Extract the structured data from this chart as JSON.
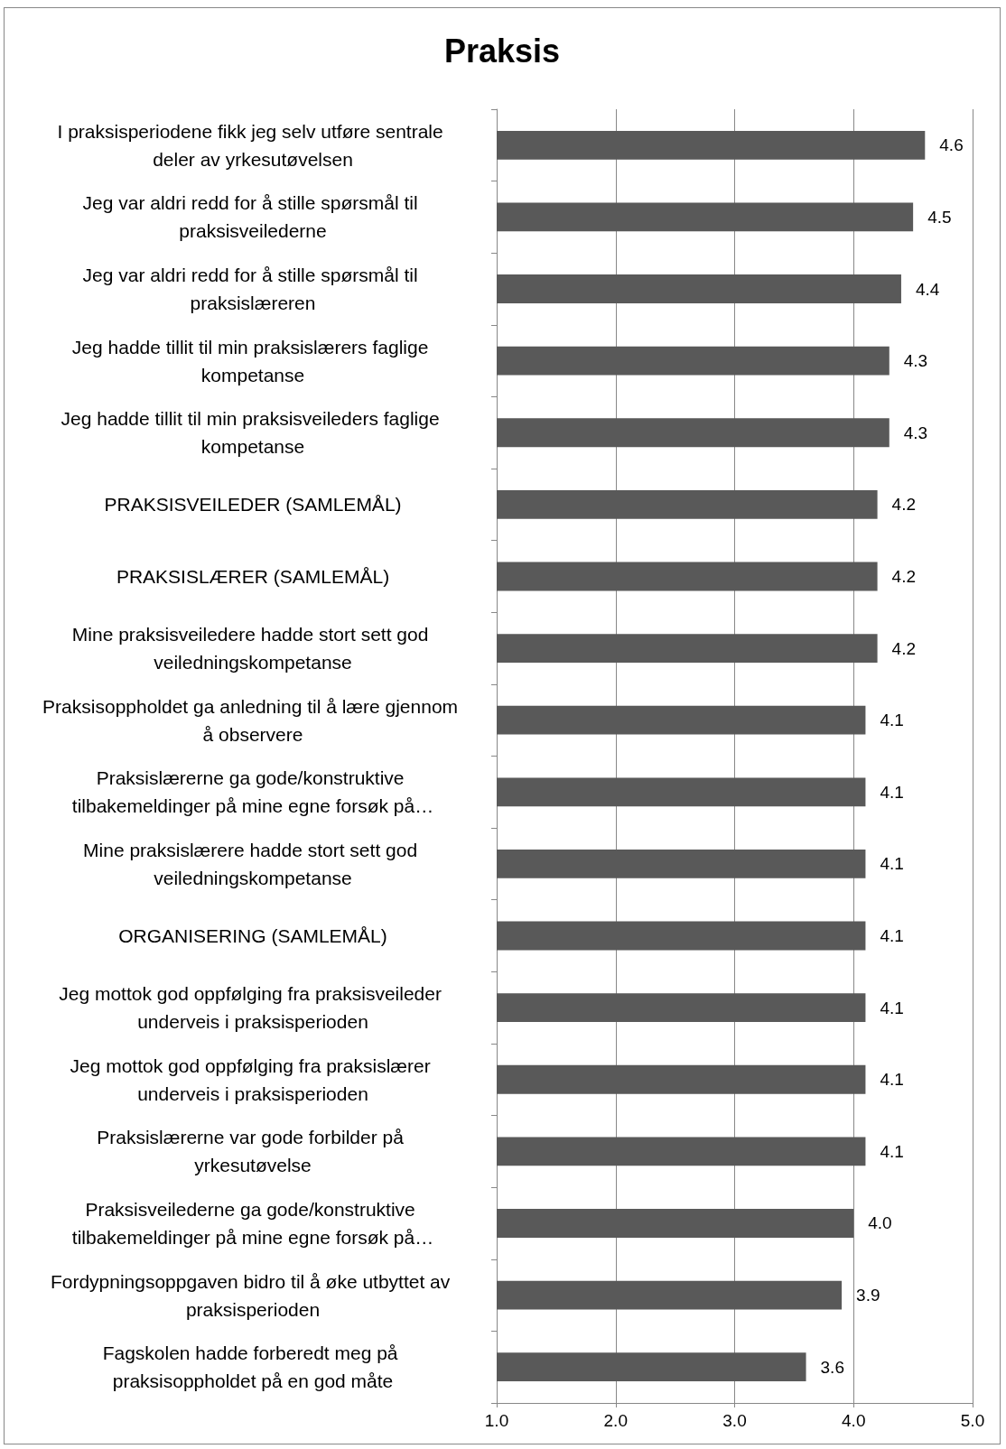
{
  "chart_data": {
    "type": "bar",
    "orientation": "horizontal",
    "title": "Praksis",
    "categories": [
      "I praksisperiodene fikk jeg selv utføre sentrale deler av yrkesutøvelsen",
      "Jeg var aldri redd for å stille spørsmål til praksisveilederne",
      "Jeg var aldri redd for å stille spørsmål til praksislæreren",
      "Jeg hadde tillit til min praksislærers faglige kompetanse",
      "Jeg hadde tillit til min praksisveileders faglige kompetanse",
      "PRAKSISVEILEDER (SAMLEMÅL)",
      "PRAKSISLÆRER (SAMLEMÅL)",
      "Mine praksisveiledere hadde stort sett god veiledningskompetanse",
      "Praksisoppholdet ga anledning til å lære gjennom å observere",
      "Praksislærerne ga gode/konstruktive tilbakemeldinger på mine egne forsøk på…",
      "Mine praksislærere hadde stort sett god veiledningskompetanse",
      "ORGANISERING (SAMLEMÅL)",
      "Jeg mottok god oppfølging fra praksisveileder underveis i praksisperioden",
      "Jeg mottok god oppfølging fra praksislærer underveis i praksisperioden",
      "Praksislærerne var gode forbilder på yrkesutøvelse",
      "Praksisveilederne ga gode/konstruktive tilbakemeldinger på mine egne forsøk på…",
      "Fordypningsoppgaven bidro til å øke utbyttet av praksisperioden",
      "Fagskolen hadde forberedt meg på praksisoppholdet på en god måte"
    ],
    "values": [
      4.6,
      4.5,
      4.4,
      4.3,
      4.3,
      4.2,
      4.2,
      4.2,
      4.1,
      4.1,
      4.1,
      4.1,
      4.1,
      4.1,
      4.1,
      4.0,
      3.9,
      3.6
    ],
    "color": "#595959",
    "xlim": [
      1,
      5
    ],
    "xticks": [
      {
        "value": 1,
        "label": "1.0"
      },
      {
        "value": 2,
        "label": "2.0"
      },
      {
        "value": 3,
        "label": "3.0"
      },
      {
        "value": 4,
        "label": "4.0"
      },
      {
        "value": 5,
        "label": "5.0"
      }
    ],
    "grid": "x",
    "value_labels": [
      "4.6",
      "4.5",
      "4.4",
      "4.3",
      "4.3",
      "4.2",
      "4.2",
      "4.2",
      "4.1",
      "4.1",
      "4.1",
      "4.1",
      "4.1",
      "4.1",
      "4.1",
      "4.0",
      "3.9",
      "3.6"
    ]
  }
}
